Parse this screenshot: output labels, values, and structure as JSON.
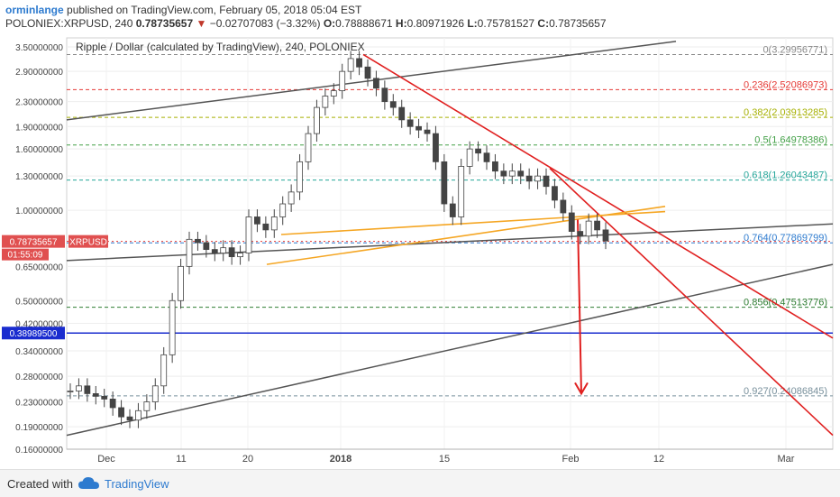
{
  "header": {
    "author": "orminlange",
    "published": " published on TradingView.com, February 05, 2018 05:04 EST",
    "symbol": "POLONIEX:XRPUSD, 240",
    "last": "0.78735657",
    "change_arrow": "▼",
    "change": "−0.02707083 (−3.32%)",
    "o_label": "O:",
    "o": "0.78888671",
    "h_label": "H:",
    "h": "0.80971926",
    "l_label": "L:",
    "l": "0.75781527",
    "c_label": "C:",
    "c": "0.78735657"
  },
  "footer": {
    "created": "Created with",
    "brand": "TradingView"
  },
  "chart_data": {
    "type": "candlestick",
    "title": "Ripple / Dollar (calculated by TradingView), 240, POLONIEX",
    "y_scale": "log",
    "ylim": [
      0.16,
      3.75
    ],
    "y_ticks": [
      "3.50000000",
      "2.90000000",
      "2.30000000",
      "1.90000000",
      "1.60000000",
      "1.30000000",
      "1.00000000",
      "0.78735657",
      "0.65000000",
      "0.50000000",
      "0.42000000",
      "0.38989500",
      "0.34000000",
      "0.28000000",
      "0.23000000",
      "0.19000000",
      "0.16000000"
    ],
    "x_ticks": [
      "Dec",
      "11",
      "20",
      "2018",
      "15",
      "Feb",
      "12",
      "Mar"
    ],
    "price_label": "0.78735657",
    "symbol_tag": "XRPUSD",
    "countdown": "01:55:09",
    "hline_label": "0.38989500",
    "fib_levels": [
      {
        "label": "0(3.29956771)",
        "value": 3.29956771,
        "color": "#888888"
      },
      {
        "label": "0.236(2.52086973)",
        "value": 2.52086973,
        "color": "#e53935"
      },
      {
        "label": "0.382(2.03913285)",
        "value": 2.03913285,
        "color": "#a6b000"
      },
      {
        "label": "0.5(1.64978386)",
        "value": 1.64978386,
        "color": "#43a047"
      },
      {
        "label": "0.618(1.26043487)",
        "value": 1.26043487,
        "color": "#26a69a"
      },
      {
        "label": "0.764(0.77869799)",
        "value": 0.77869799,
        "color": "#2e7bcf"
      },
      {
        "label": "0.856(0.47513776)",
        "value": 0.47513776,
        "color": "#2e7d32"
      },
      {
        "label": "0.927(0.24086845)",
        "value": 0.24086845,
        "color": "#78909c"
      }
    ],
    "candles_close": [
      0.25,
      0.26,
      0.245,
      0.24,
      0.235,
      0.22,
      0.205,
      0.2,
      0.215,
      0.23,
      0.26,
      0.33,
      0.5,
      0.65,
      0.8,
      0.78,
      0.74,
      0.72,
      0.75,
      0.7,
      0.72,
      0.95,
      0.9,
      0.86,
      0.95,
      1.05,
      1.15,
      1.45,
      1.8,
      2.2,
      2.4,
      2.5,
      2.9,
      3.2,
      3.0,
      2.75,
      2.55,
      2.3,
      2.2,
      2.0,
      1.9,
      1.85,
      1.8,
      1.45,
      1.05,
      0.95,
      1.4,
      1.6,
      1.55,
      1.45,
      1.35,
      1.3,
      1.35,
      1.3,
      1.25,
      1.3,
      1.2,
      1.08,
      0.98,
      0.85,
      0.82,
      0.92,
      0.86,
      0.79
    ]
  }
}
